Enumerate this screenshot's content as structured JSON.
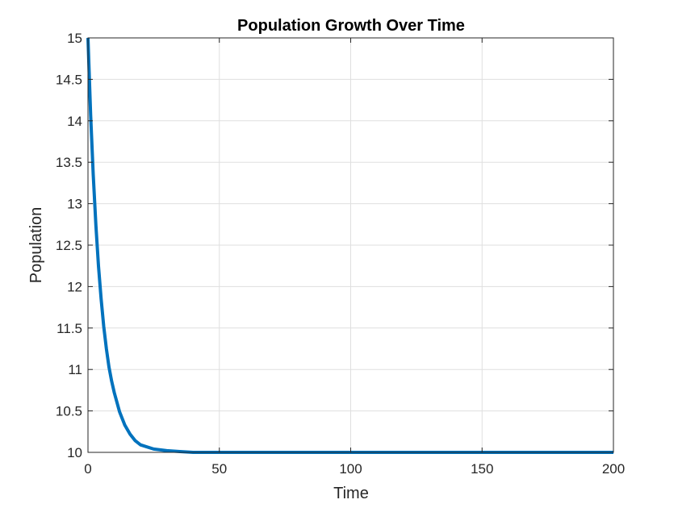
{
  "chart_data": {
    "type": "line",
    "title": "Population Growth Over Time",
    "xlabel": "Time",
    "ylabel": "Population",
    "xlim": [
      0,
      200
    ],
    "ylim": [
      10,
      15
    ],
    "xticks": [
      0,
      50,
      100,
      150,
      200
    ],
    "xtick_labels": [
      "0",
      "50",
      "100",
      "150",
      "200"
    ],
    "yticks": [
      10,
      10.5,
      11,
      11.5,
      12,
      12.5,
      13,
      13.5,
      14,
      14.5,
      15
    ],
    "ytick_labels": [
      "10",
      "10.5",
      "11",
      "11.5",
      "12",
      "12.5",
      "13",
      "13.5",
      "14",
      "14.5",
      "15"
    ],
    "grid": true,
    "line_color": "#0072bd",
    "series": [
      {
        "x": [
          0,
          1,
          2,
          3,
          4,
          5,
          6,
          7,
          8,
          9,
          10,
          12,
          14,
          16,
          18,
          20,
          25,
          30,
          35,
          40,
          50,
          60,
          80,
          100,
          120,
          150,
          200
        ],
        "y": [
          15,
          14.07,
          13.35,
          12.74,
          12.25,
          11.85,
          11.52,
          11.25,
          11.03,
          10.86,
          10.72,
          10.49,
          10.33,
          10.22,
          10.14,
          10.09,
          10.04,
          10.02,
          10.01,
          10.0,
          10.0,
          10.0,
          10.0,
          10.0,
          10.0,
          10.0,
          10.0
        ]
      }
    ]
  }
}
